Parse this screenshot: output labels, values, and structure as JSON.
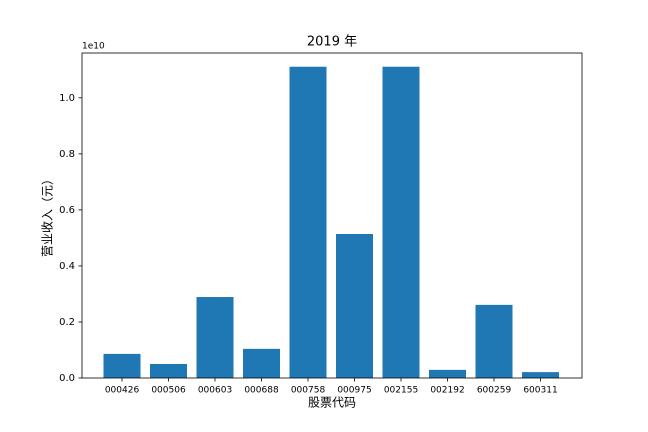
{
  "chart_data": {
    "type": "bar",
    "title": "2019 年",
    "x_label": "股票代码",
    "y_label": "营业收入（元）",
    "y_offset_label": "1e10",
    "categories": [
      "000426",
      "000506",
      "000603",
      "000688",
      "000758",
      "000975",
      "002155",
      "002192",
      "600259",
      "600311"
    ],
    "values": [
      0.086,
      0.05,
      0.289,
      0.104,
      1.111,
      0.514,
      1.111,
      0.029,
      0.261,
      0.021
    ],
    "color": "#1f77b4",
    "ylim": [
      0,
      1.16
    ],
    "yticks": [
      {
        "value": 0,
        "label": "0.0"
      },
      0.2,
      0.4,
      0.6,
      0.8,
      {
        "value": 1,
        "label": "1.0"
      }
    ],
    "grid": false
  }
}
